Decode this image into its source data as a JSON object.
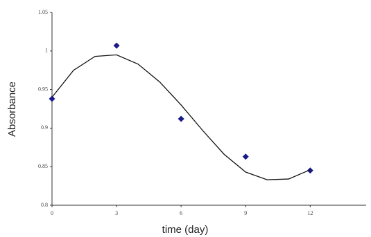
{
  "chart_data": {
    "type": "scatter",
    "x_label": "time (day)",
    "y_label": "Absorbance",
    "xlim": [
      0,
      14.6
    ],
    "ylim": [
      0.8,
      1.05
    ],
    "xticks": [
      0,
      3,
      6,
      9,
      12
    ],
    "yticks": [
      {
        "value": 0.8,
        "label": "0.8"
      },
      0.85,
      0.9,
      0.95,
      1,
      1.05
    ],
    "series": [
      {
        "color": "#1a1a8c",
        "x": [
          0,
          3,
          6,
          9,
          12
        ],
        "values": [
          0.938,
          1.007,
          0.912,
          0.863,
          0.845
        ]
      },
      {
        "type": "line",
        "color": "#111111",
        "x": [
          0,
          1,
          2,
          3,
          4,
          5,
          6,
          7,
          8,
          9,
          10,
          11,
          12
        ],
        "values": [
          0.94,
          0.975,
          0.993,
          0.995,
          0.983,
          0.96,
          0.93,
          0.897,
          0.866,
          0.843,
          0.833,
          0.834,
          0.846
        ]
      }
    ]
  }
}
